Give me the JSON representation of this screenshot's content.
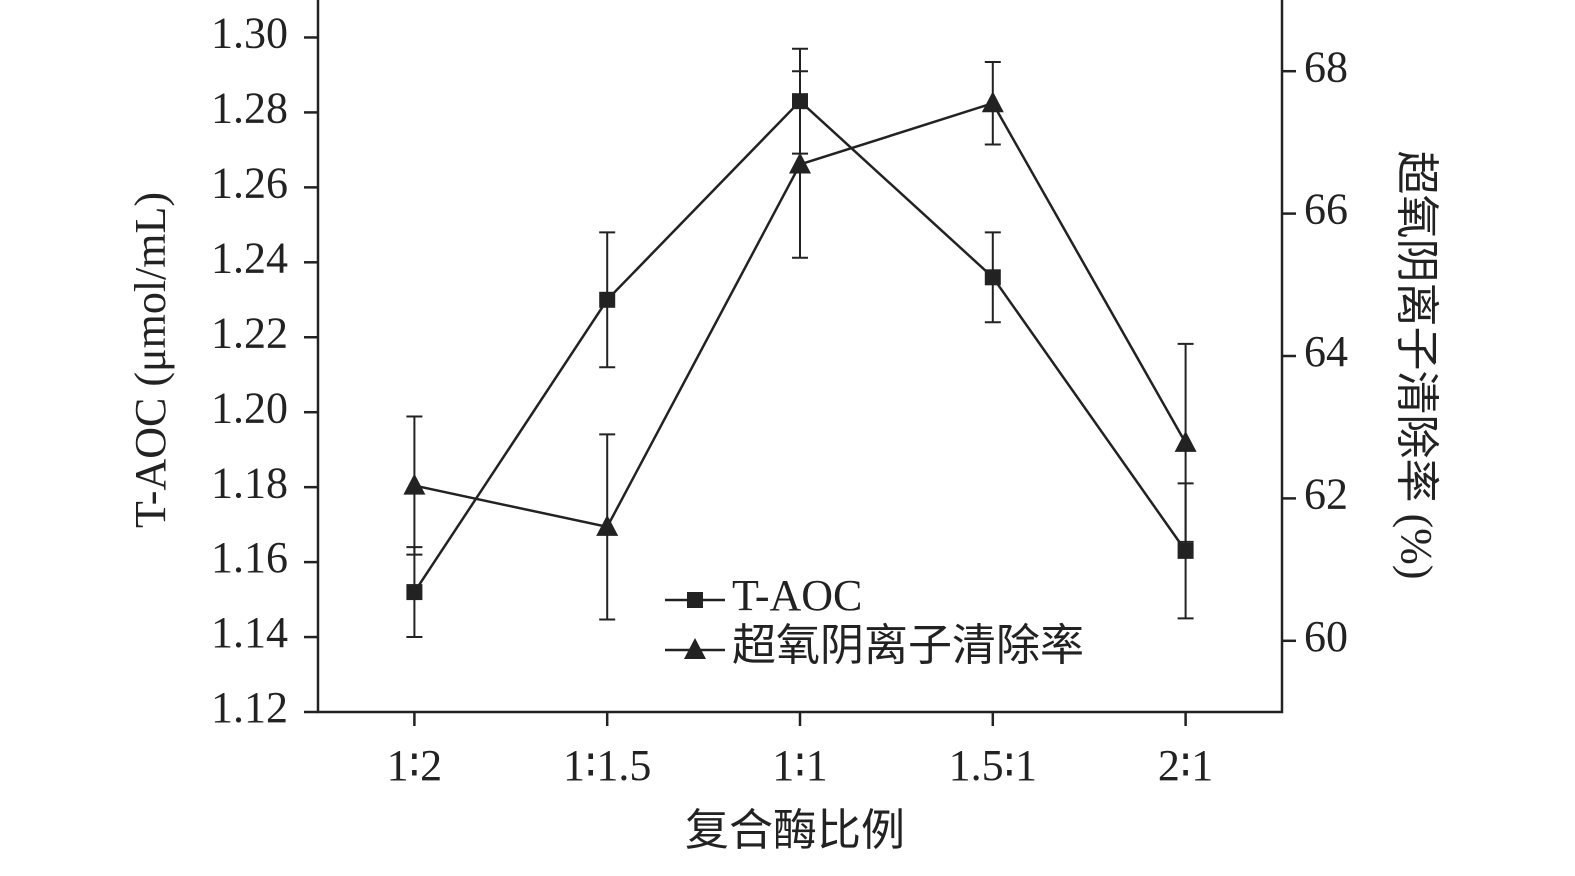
{
  "chart_data": {
    "type": "line",
    "x_label": "复合酶比例",
    "y_label": "T-AOC (μmol/mL)",
    "y2_label": "超氧阴离子清除率 (%)",
    "categories": [
      "1∶2",
      "1∶1.5",
      "1∶1",
      "1.5∶1",
      "2∶1"
    ],
    "series": [
      {
        "name": "T-AOC",
        "color": "#222222",
        "marker": "square",
        "axis": "y",
        "values": [
          1.152,
          1.23,
          1.283,
          1.236,
          1.163
        ],
        "errors": [
          0.012,
          0.018,
          0.014,
          0.012,
          0.018
        ]
      },
      {
        "name": "超氧阴离子清除率",
        "color": "#222222",
        "marker": "triangle",
        "axis": "y2",
        "values": [
          62.18,
          61.6,
          66.69,
          67.55,
          62.78
        ],
        "errors": [
          0.97,
          1.3,
          1.31,
          0.58,
          1.39
        ]
      }
    ],
    "ylim": [
      1.12,
      1.31
    ],
    "yticks": [
      1.12,
      1.14,
      1.16,
      1.18,
      {
        "value": 1.2,
        "label": "1.20"
      },
      1.22,
      1.24,
      1.26,
      1.28,
      {
        "value": 1.3,
        "label": "1.30"
      }
    ],
    "y2lim": [
      59,
      69
    ],
    "y2ticks": [
      60,
      62,
      64,
      66,
      68
    ],
    "legend": "bottom-center"
  }
}
